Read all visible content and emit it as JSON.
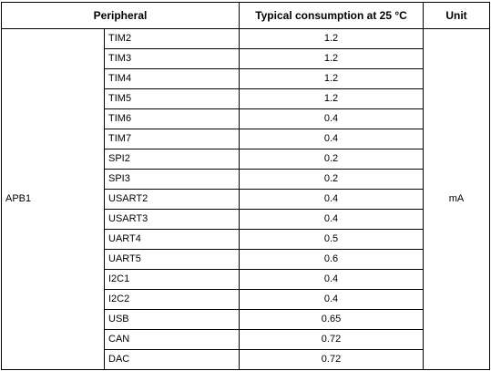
{
  "table": {
    "headers": {
      "peripheral": "Peripheral",
      "consumption": "Typical consumption at 25 °C",
      "unit": "Unit"
    },
    "group": "APB1",
    "unit": "mA",
    "rows": [
      {
        "name": "TIM2",
        "value": "1.2"
      },
      {
        "name": "TIM3",
        "value": "1.2"
      },
      {
        "name": "TIM4",
        "value": "1.2"
      },
      {
        "name": "TIM5",
        "value": "1.2"
      },
      {
        "name": "TIM6",
        "value": "0.4"
      },
      {
        "name": "TIM7",
        "value": "0.4"
      },
      {
        "name": "SPI2",
        "value": "0.2"
      },
      {
        "name": "SPI3",
        "value": "0.2"
      },
      {
        "name": "USART2",
        "value": "0.4"
      },
      {
        "name": "USART3",
        "value": "0.4"
      },
      {
        "name": "UART4",
        "value": "0.5"
      },
      {
        "name": "UART5",
        "value": "0.6"
      },
      {
        "name": "I2C1",
        "value": "0.4"
      },
      {
        "name": "I2C2",
        "value": "0.4"
      },
      {
        "name": "USB",
        "value": "0.65"
      },
      {
        "name": "CAN",
        "value": "0.72"
      },
      {
        "name": "DAC",
        "value": "0.72"
      }
    ]
  }
}
